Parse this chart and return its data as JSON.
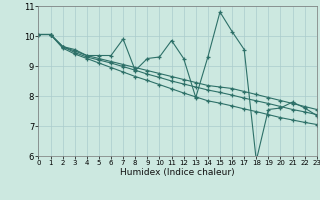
{
  "xlabel": "Humidex (Indice chaleur)",
  "bg_color": "#cce8e0",
  "grid_color": "#aacccc",
  "line_color": "#2d7068",
  "xlim": [
    0,
    23
  ],
  "ylim": [
    6,
    11
  ],
  "xticks": [
    0,
    1,
    2,
    3,
    4,
    5,
    6,
    7,
    8,
    9,
    10,
    11,
    12,
    13,
    14,
    15,
    16,
    17,
    18,
    19,
    20,
    21,
    22,
    23
  ],
  "yticks": [
    6,
    7,
    8,
    9,
    10,
    11
  ],
  "series": [
    {
      "x": [
        0,
        1,
        2,
        3,
        4,
        5,
        6,
        7,
        8,
        9,
        10,
        11,
        12,
        13,
        14,
        15,
        16,
        17,
        18,
        19,
        20,
        21,
        22,
        23
      ],
      "y": [
        10.05,
        10.05,
        9.65,
        9.55,
        9.35,
        9.35,
        9.35,
        9.9,
        8.85,
        9.25,
        9.3,
        9.85,
        9.25,
        7.95,
        9.3,
        10.8,
        10.15,
        9.55,
        5.85,
        7.55,
        7.6,
        7.8,
        7.6,
        7.35
      ]
    },
    {
      "x": [
        0,
        1,
        2,
        3,
        4,
        5,
        6,
        7,
        8,
        9,
        10,
        11,
        12,
        13,
        14,
        15,
        16,
        17,
        18,
        19,
        20,
        21,
        22,
        23
      ],
      "y": [
        10.05,
        10.05,
        9.65,
        9.5,
        9.35,
        9.25,
        9.15,
        9.05,
        8.95,
        8.85,
        8.75,
        8.65,
        8.55,
        8.45,
        8.35,
        8.3,
        8.25,
        8.15,
        8.05,
        7.95,
        7.85,
        7.75,
        7.65,
        7.55
      ]
    },
    {
      "x": [
        0,
        1,
        2,
        3,
        4,
        5,
        6,
        7,
        8,
        9,
        10,
        11,
        12,
        13,
        14,
        15,
        16,
        17,
        18,
        19,
        20,
        21,
        22,
        23
      ],
      "y": [
        10.05,
        10.05,
        9.65,
        9.45,
        9.3,
        9.2,
        9.1,
        8.98,
        8.86,
        8.73,
        8.62,
        8.5,
        8.4,
        8.3,
        8.2,
        8.12,
        8.03,
        7.93,
        7.84,
        7.75,
        7.65,
        7.55,
        7.47,
        7.38
      ]
    },
    {
      "x": [
        0,
        1,
        2,
        3,
        4,
        5,
        6,
        7,
        8,
        9,
        10,
        11,
        12,
        13,
        14,
        15,
        16,
        17,
        18,
        19,
        20,
        21,
        22,
        23
      ],
      "y": [
        10.05,
        10.05,
        9.6,
        9.4,
        9.25,
        9.1,
        8.95,
        8.8,
        8.65,
        8.52,
        8.38,
        8.24,
        8.1,
        7.97,
        7.84,
        7.76,
        7.67,
        7.57,
        7.48,
        7.38,
        7.28,
        7.2,
        7.12,
        7.05
      ]
    }
  ]
}
